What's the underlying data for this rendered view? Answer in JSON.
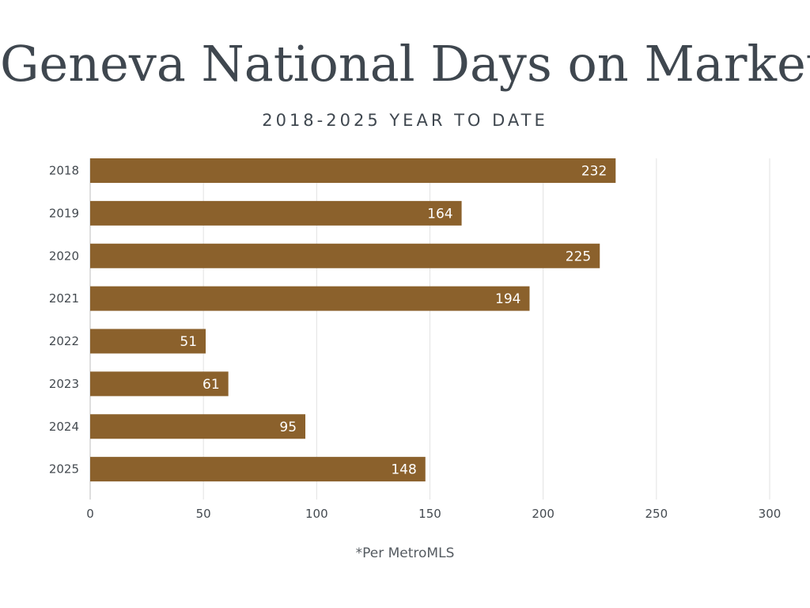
{
  "chart_data": {
    "type": "bar",
    "orientation": "horizontal",
    "title": "Geneva National Days on Market",
    "subtitle": "2018-2025 YEAR TO DATE",
    "categories": [
      "2018",
      "2019",
      "2020",
      "2021",
      "2022",
      "2023",
      "2024",
      "2025"
    ],
    "values": [
      232,
      164,
      225,
      194,
      51,
      61,
      95,
      148
    ],
    "data_labels": [
      "232",
      "164",
      "225",
      "194",
      "51",
      "61",
      "95",
      "148"
    ],
    "xticks": [
      "0",
      "50",
      "100",
      "150",
      "200",
      "250",
      "300"
    ],
    "xlim": [
      0,
      300
    ],
    "grid": true,
    "bar_color": "#8b612c",
    "footnote": "*Per MetroMLS"
  }
}
